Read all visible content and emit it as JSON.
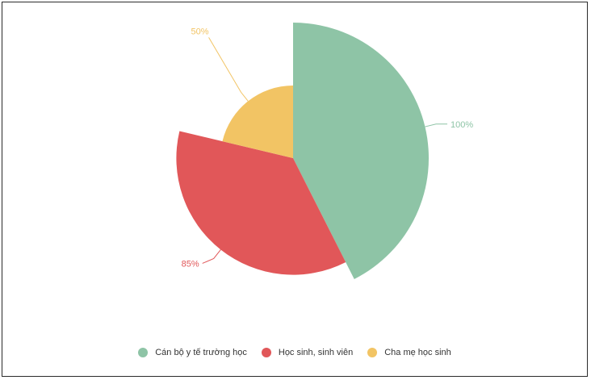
{
  "chart_data": {
    "type": "pie",
    "variant": "nightingale-rose",
    "categories": [
      "Cán bộ y tế trường học",
      "Học sinh, sinh viên",
      "Cha mẹ học sinh"
    ],
    "values": [
      100,
      85,
      50
    ],
    "labels": [
      "100%",
      "85%",
      "50%"
    ],
    "colors": [
      "#8ec4a6",
      "#e15759",
      "#f2c464"
    ],
    "legend_position": "bottom"
  }
}
